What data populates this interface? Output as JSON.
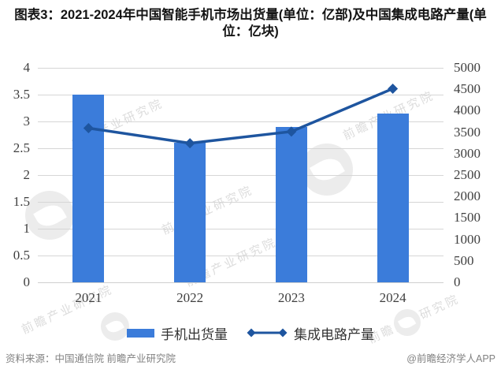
{
  "title": "图表3：2021-2024年中国智能手机市场出货量(单位：亿部)及中国集成电路产量(单位：亿块)",
  "footer": {
    "source": "资料来源：中国通信院 前瞻产业研究院",
    "handle": "@前瞻经济学人APP"
  },
  "watermark": {
    "text": "前瞻产业研究院"
  },
  "colors": {
    "bar": "#3b7cda",
    "line": "#1e559f",
    "grid": "#d6d6d6",
    "axis_text": "#3f3f3f",
    "footer_text": "#828282",
    "watermark": "#dcdcdc",
    "background": "#ffffff"
  },
  "chart_data": {
    "type": "bar+line combo",
    "title": "图表3：2021-2024年中国智能手机市场出货量(单位：亿部)及中国集成电路产量(单位：亿块)",
    "categories": [
      "2021",
      "2022",
      "2023",
      "2024"
    ],
    "series": [
      {
        "name": "手机出货量",
        "type": "bar",
        "axis": "left",
        "unit": "亿部",
        "color": "#3b7cda",
        "values": [
          3.5,
          2.6,
          2.89,
          3.14
        ]
      },
      {
        "name": "集成电路产量",
        "type": "line",
        "axis": "right",
        "unit": "亿块",
        "color": "#1e559f",
        "marker": "diamond",
        "values": [
          3594,
          3242,
          3514,
          4514
        ]
      }
    ],
    "left_axis": {
      "range": [
        0,
        4
      ],
      "step": 0.5,
      "tick_labels": [
        "4",
        "3.5",
        "3",
        "2.5",
        "2",
        "1.5",
        "1",
        "0.5",
        "0"
      ]
    },
    "right_axis": {
      "range": [
        0,
        5000
      ],
      "step": 500,
      "tick_labels": [
        "5000",
        "4500",
        "4000",
        "3500",
        "3000",
        "2500",
        "2000",
        "1500",
        "1000",
        "500",
        "0"
      ]
    },
    "grid": "horizontal",
    "legend_position": "bottom"
  }
}
